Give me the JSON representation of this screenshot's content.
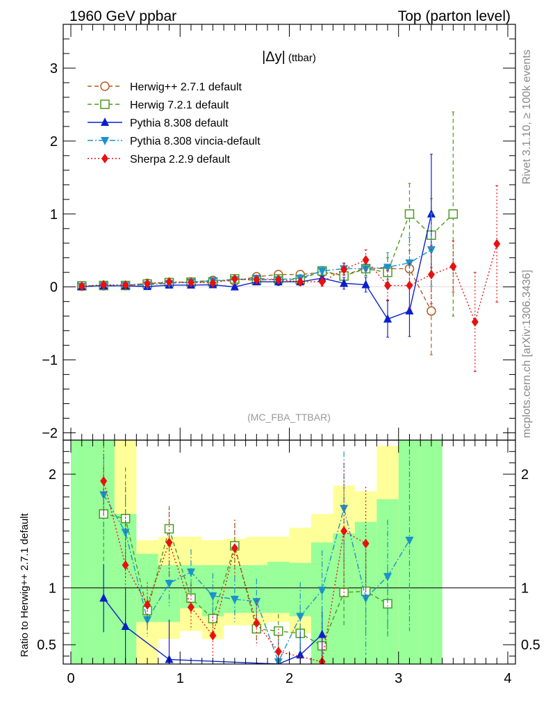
{
  "header": {
    "left": "1960 GeV ppbar",
    "right": "Top (parton level)"
  },
  "side_labels": {
    "rivet": "Rivet 3.1.10, ≥ 100k events",
    "mcplots": "mcplots.cern.ch [arXiv:1306.3436]"
  },
  "chart_data": [
    {
      "type": "line",
      "panel": "main",
      "title": "|Δy| (ttbar)",
      "title_main": "|Δy|",
      "title_sub": "(ttbar)",
      "watermark": "(MC_FBA_TTBAR)",
      "xlim": [
        -0.07,
        4.07
      ],
      "ylim": [
        -2.1,
        3.6
      ],
      "y_ticks": [
        -2,
        -1,
        0,
        1,
        2,
        3
      ],
      "y_tick_labels": [
        "−2",
        "−1",
        "0",
        "1",
        "2",
        "3"
      ],
      "legend_position": "top-left",
      "series": [
        {
          "name": "Herwig++ 2.7.1 default",
          "color": "#b35a1f",
          "marker": "open-circle",
          "dash": "dashed",
          "x": [
            0.1,
            0.3,
            0.5,
            0.7,
            0.9,
            1.1,
            1.3,
            1.5,
            1.7,
            1.9,
            2.1,
            2.3,
            2.5,
            2.7,
            2.9,
            3.1,
            3.3
          ],
          "y": [
            0.01,
            0.015,
            0.02,
            0.05,
            0.06,
            0.07,
            0.09,
            0.08,
            0.14,
            0.17,
            0.17,
            0.2,
            0.16,
            0.26,
            0.25,
            0.25,
            -0.33
          ],
          "err": [
            0.01,
            0.012,
            0.015,
            0.02,
            0.02,
            0.025,
            0.03,
            0.03,
            0.04,
            0.05,
            0.05,
            0.06,
            0.08,
            0.1,
            0.15,
            0.25,
            0.6
          ]
        },
        {
          "name": "Herwig 7.2.1 default",
          "color": "#4a9a1c",
          "marker": "open-square",
          "dash": "dashed",
          "x": [
            0.1,
            0.3,
            0.5,
            0.7,
            0.9,
            1.1,
            1.3,
            1.5,
            1.7,
            1.9,
            2.1,
            2.3,
            2.5,
            2.7,
            2.9,
            3.1,
            3.3,
            3.5
          ],
          "y": [
            0.015,
            0.02,
            0.02,
            0.04,
            0.06,
            0.065,
            0.07,
            0.11,
            0.09,
            0.11,
            0.1,
            0.22,
            0.15,
            0.25,
            0.2,
            1.0,
            0.71,
            1.0
          ],
          "err": [
            0.01,
            0.012,
            0.015,
            0.02,
            0.02,
            0.025,
            0.03,
            0.03,
            0.04,
            0.05,
            0.05,
            0.06,
            0.08,
            0.1,
            0.2,
            0.42,
            0.5,
            1.4
          ]
        },
        {
          "name": "Pythia 8.308 default",
          "color": "#0a1fcc",
          "marker": "filled-triangle-up",
          "dash": "solid",
          "x": [
            0.1,
            0.3,
            0.5,
            0.7,
            0.9,
            1.1,
            1.3,
            1.5,
            1.7,
            1.9,
            2.1,
            2.3,
            2.5,
            2.7,
            2.9,
            3.1,
            3.3
          ],
          "y": [
            0.005,
            0.015,
            0.015,
            0.005,
            0.025,
            0.025,
            0.03,
            0.0,
            0.07,
            0.07,
            0.07,
            0.12,
            0.05,
            0.03,
            -0.44,
            -0.33,
            1.0
          ],
          "err": [
            0.01,
            0.012,
            0.015,
            0.02,
            0.02,
            0.025,
            0.03,
            0.03,
            0.04,
            0.05,
            0.05,
            0.06,
            0.08,
            0.1,
            0.25,
            0.35,
            0.82
          ]
        },
        {
          "name": "Pythia 8.308 vincia-default",
          "color": "#1a93c9",
          "marker": "filled-triangle-down",
          "dash": "dashdot",
          "x": [
            0.1,
            0.3,
            0.5,
            0.7,
            0.9,
            1.1,
            1.3,
            1.5,
            1.7,
            1.9,
            2.1,
            2.3,
            2.5,
            2.7,
            2.9,
            3.1,
            3.3
          ],
          "y": [
            0.01,
            0.02,
            0.02,
            0.03,
            0.05,
            0.065,
            0.085,
            0.1,
            0.12,
            0.1,
            0.12,
            0.22,
            0.25,
            0.25,
            0.27,
            0.33,
            0.51
          ],
          "err": [
            0.01,
            0.012,
            0.015,
            0.02,
            0.02,
            0.025,
            0.03,
            0.03,
            0.04,
            0.05,
            0.05,
            0.06,
            0.08,
            0.1,
            0.2,
            0.35,
            0.5
          ]
        },
        {
          "name": "Sherpa 2.2.9 default",
          "color": "#e8110f",
          "marker": "filled-diamond",
          "dash": "dotted",
          "x": [
            0.1,
            0.3,
            0.5,
            0.7,
            0.9,
            1.1,
            1.3,
            1.5,
            1.7,
            1.9,
            2.1,
            2.3,
            2.5,
            2.7,
            2.9,
            3.1,
            3.3,
            3.5,
            3.7,
            3.9
          ],
          "y": [
            0.01,
            0.03,
            0.025,
            0.045,
            0.07,
            0.06,
            0.055,
            0.11,
            0.1,
            0.1,
            0.07,
            0.07,
            0.24,
            0.37,
            0.02,
            0.02,
            0.17,
            0.28,
            -0.48,
            0.59
          ],
          "err": [
            0.01,
            0.012,
            0.015,
            0.02,
            0.02,
            0.025,
            0.03,
            0.03,
            0.04,
            0.05,
            0.05,
            0.06,
            0.08,
            0.14,
            0.2,
            0.3,
            0.4,
            0.35,
            0.68,
            0.8
          ]
        }
      ]
    },
    {
      "type": "line",
      "panel": "ratio",
      "ylabel": "Ratio to Herwig++ 2.7.1 default",
      "xlim": [
        -0.07,
        4.07
      ],
      "ylim": [
        0.33,
        2.3
      ],
      "y_ticks": [
        0.5,
        1,
        2
      ],
      "y_tick_labels": [
        "0.5",
        "1",
        "2"
      ],
      "x_ticks": [
        0,
        1,
        2,
        3,
        4
      ],
      "x_tick_labels": [
        "0",
        "1",
        "2",
        "3",
        "4"
      ],
      "bands": {
        "x_edges": [
          0.0,
          0.2,
          0.4,
          0.6,
          0.8,
          1.0,
          1.2,
          1.4,
          1.6,
          1.8,
          2.0,
          2.2,
          2.4,
          2.6,
          2.8,
          3.0,
          3.2,
          3.4
        ],
        "yellow_lo": [
          0.33,
          0.33,
          0.43,
          0.33,
          0.55,
          0.62,
          0.55,
          0.67,
          0.67,
          0.7,
          0.6,
          0.33,
          0.33,
          0.57,
          0.33,
          0.33,
          0.33
        ],
        "yellow_hi": [
          2.3,
          2.3,
          2.3,
          1.42,
          1.45,
          1.45,
          1.42,
          1.43,
          1.45,
          1.45,
          1.53,
          1.65,
          1.9,
          1.85,
          2.25,
          2.3,
          2.3
        ],
        "green_lo": [
          0.33,
          0.33,
          0.33,
          0.7,
          0.7,
          0.82,
          0.75,
          0.78,
          0.78,
          0.78,
          0.75,
          0.33,
          0.33,
          0.33,
          0.33,
          0.33,
          0.33
        ],
        "green_hi": [
          2.3,
          2.3,
          1.65,
          1.3,
          1.2,
          1.2,
          1.2,
          1.2,
          1.2,
          1.23,
          1.22,
          1.4,
          1.48,
          1.58,
          1.78,
          2.3,
          2.3
        ],
        "yellow_color": "#ffff99",
        "green_color": "#99ff99"
      },
      "series": [
        {
          "name": "Herwig 7.2.1 default",
          "x": [
            0.3,
            0.5,
            0.7,
            0.9,
            1.1,
            1.3,
            1.5,
            1.7,
            1.9,
            2.1,
            2.3,
            2.5,
            2.7,
            2.9
          ],
          "y": [
            1.65,
            1.61,
            0.8,
            1.52,
            0.91,
            0.73,
            1.37,
            0.64,
            0.62,
            0.6,
            0.49,
            0.96,
            0.97,
            0.86
          ],
          "err": [
            0.42,
            0.45,
            0.12,
            0.2,
            0.15,
            0.15,
            0.2,
            0.12,
            0.15,
            0.2,
            0.15,
            0.3,
            0.35,
            0.3
          ]
        },
        {
          "name": "Pythia 8.308 default",
          "x": [
            0.3,
            0.5,
            0.9,
            1.9,
            2.1,
            2.3
          ],
          "y": [
            0.91,
            0.66,
            0.37,
            0.33,
            0.41,
            0.59
          ],
          "err": [
            0.3,
            0.35,
            0.35,
            0.15,
            0.2,
            0.2
          ]
        },
        {
          "name": "Pythia 8.308 vincia-default",
          "x": [
            0.3,
            0.5,
            0.7,
            0.9,
            1.1,
            1.3,
            1.5,
            1.7,
            1.9,
            2.1,
            2.3,
            2.5,
            2.7,
            2.9,
            3.1
          ],
          "y": [
            1.82,
            1.49,
            0.72,
            1.04,
            1.14,
            0.93,
            0.9,
            0.88,
            0.35,
            0.75,
            0.98,
            1.7,
            0.91,
            1.1,
            1.42
          ],
          "err": [
            0.35,
            0.4,
            0.15,
            0.2,
            0.2,
            0.2,
            0.2,
            0.2,
            0.2,
            0.3,
            0.35,
            0.5,
            0.5,
            0.5,
            0.8
          ]
        },
        {
          "name": "Sherpa 2.2.9 default",
          "x": [
            0.3,
            0.5,
            0.7,
            0.9,
            1.1,
            1.3,
            1.5,
            1.7,
            1.9,
            2.3,
            2.5,
            2.7
          ],
          "y": [
            1.94,
            1.2,
            0.85,
            1.4,
            0.83,
            0.58,
            1.35,
            0.69,
            0.44,
            0.35,
            1.5,
            1.39
          ],
          "err": [
            0.3,
            0.45,
            0.2,
            0.3,
            0.2,
            0.2,
            0.25,
            0.2,
            0.2,
            0.2,
            0.6,
            0.5
          ]
        }
      ]
    }
  ]
}
